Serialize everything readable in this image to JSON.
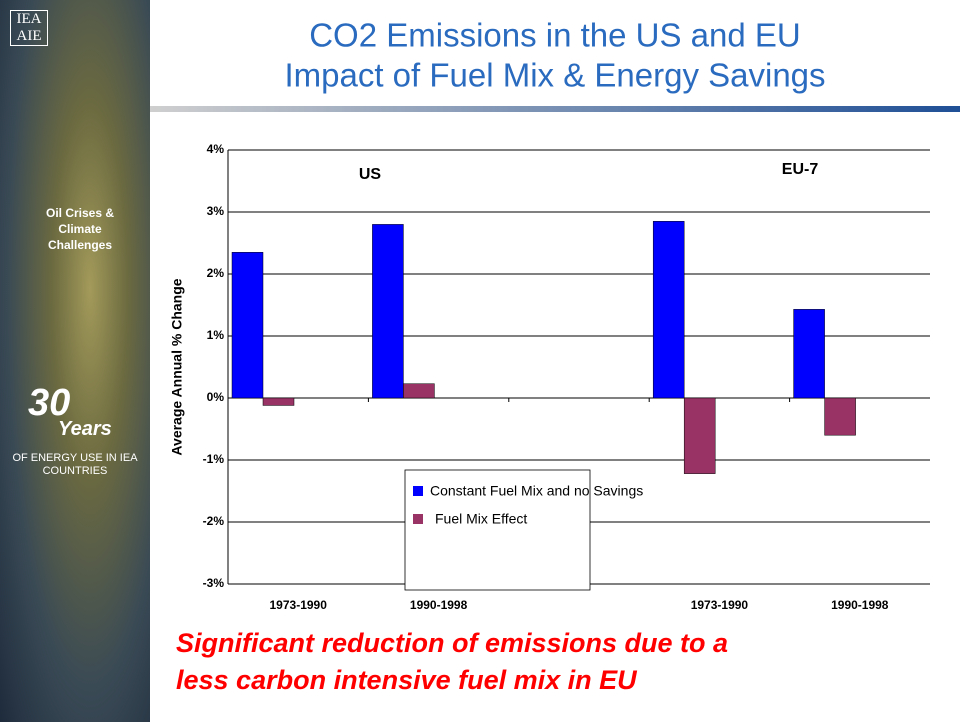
{
  "slide": {
    "logo": [
      "IEA",
      "AIE"
    ],
    "theme": "Oil Crises & Climate Challenges",
    "number": "30",
    "word": "Years",
    "tagline": "OF ENERGY USE IN IEA COUNTRIES"
  },
  "chart_data": {
    "type": "bar",
    "title": "CO2 Emissions in the US and EU",
    "subtitle": "Impact of Fuel Mix & Energy Savings",
    "y_label": "Average Annual % Change",
    "annotations": [
      "US",
      "EU-7"
    ],
    "categories": [
      "1973-1990",
      "1990-1998",
      null,
      "1973-1990",
      "1990-1998"
    ],
    "series": [
      {
        "name": "Constant Fuel Mix and no Savings",
        "color": "#0000ff",
        "values": [
          2.35,
          2.8,
          null,
          2.85,
          1.43
        ]
      },
      {
        "name": "Fuel Mix Effect",
        "color": "#993366",
        "values": [
          -0.12,
          0.23,
          null,
          -1.22,
          -0.6
        ]
      }
    ],
    "ylim": [
      -3,
      4
    ],
    "yticks": [
      {
        "value": -3,
        "label": "-3%"
      },
      {
        "value": -2,
        "label": "-2%"
      },
      {
        "value": -1,
        "label": "-1%"
      },
      {
        "value": 0,
        "label": "0%"
      },
      {
        "value": 1,
        "label": "1%"
      },
      {
        "value": 2,
        "label": "2%"
      },
      {
        "value": 3,
        "label": "3%"
      },
      {
        "value": 4,
        "label": "4%"
      }
    ],
    "grid": true,
    "caption": "Significant reduction of emissions due to a less carbon intensive fuel mix in EU"
  }
}
